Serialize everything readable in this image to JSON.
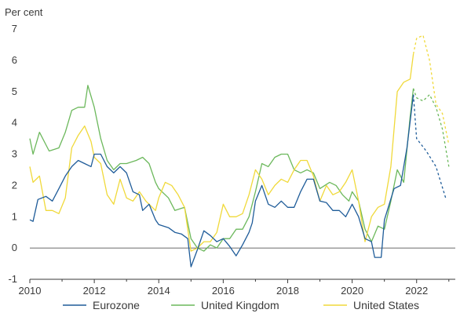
{
  "chart_data": {
    "type": "line",
    "title": "",
    "ylabel": "Per cent",
    "xlabel": "",
    "xlim": [
      2010,
      2023.2
    ],
    "ylim": [
      -1,
      7
    ],
    "x_ticks": [
      2010,
      2012,
      2014,
      2016,
      2018,
      2020,
      2022
    ],
    "y_ticks": [
      -1,
      0,
      1,
      2,
      3,
      4,
      5,
      6,
      7
    ],
    "grid": false,
    "legend_position": "bottom",
    "series": [
      {
        "name": "Eurozone",
        "color": "#1f5c99",
        "points": [
          [
            2010.0,
            0.9
          ],
          [
            2010.1,
            0.85
          ],
          [
            2010.25,
            1.55
          ],
          [
            2010.5,
            1.65
          ],
          [
            2010.7,
            1.5
          ],
          [
            2010.9,
            1.9
          ],
          [
            2011.1,
            2.3
          ],
          [
            2011.3,
            2.6
          ],
          [
            2011.5,
            2.8
          ],
          [
            2011.7,
            2.7
          ],
          [
            2011.9,
            2.6
          ],
          [
            2012.0,
            3.0
          ],
          [
            2012.2,
            3.0
          ],
          [
            2012.4,
            2.6
          ],
          [
            2012.6,
            2.4
          ],
          [
            2012.8,
            2.6
          ],
          [
            2013.0,
            2.4
          ],
          [
            2013.2,
            1.8
          ],
          [
            2013.4,
            1.7
          ],
          [
            2013.5,
            1.2
          ],
          [
            2013.7,
            1.4
          ],
          [
            2013.9,
            0.9
          ],
          [
            2014.0,
            0.75
          ],
          [
            2014.3,
            0.65
          ],
          [
            2014.5,
            0.5
          ],
          [
            2014.7,
            0.45
          ],
          [
            2014.9,
            0.3
          ],
          [
            2015.0,
            -0.6
          ],
          [
            2015.2,
            -0.05
          ],
          [
            2015.4,
            0.55
          ],
          [
            2015.6,
            0.4
          ],
          [
            2015.8,
            0.2
          ],
          [
            2016.0,
            0.3
          ],
          [
            2016.2,
            0.05
          ],
          [
            2016.4,
            -0.25
          ],
          [
            2016.6,
            0.1
          ],
          [
            2016.8,
            0.5
          ],
          [
            2016.9,
            0.8
          ],
          [
            2017.0,
            1.5
          ],
          [
            2017.2,
            2.0
          ],
          [
            2017.4,
            1.4
          ],
          [
            2017.6,
            1.3
          ],
          [
            2017.8,
            1.5
          ],
          [
            2018.0,
            1.3
          ],
          [
            2018.2,
            1.3
          ],
          [
            2018.4,
            1.8
          ],
          [
            2018.6,
            2.2
          ],
          [
            2018.8,
            2.2
          ],
          [
            2019.0,
            1.5
          ],
          [
            2019.2,
            1.45
          ],
          [
            2019.4,
            1.2
          ],
          [
            2019.6,
            1.2
          ],
          [
            2019.8,
            1.0
          ],
          [
            2020.0,
            1.4
          ],
          [
            2020.2,
            1.0
          ],
          [
            2020.4,
            0.3
          ],
          [
            2020.6,
            0.2
          ],
          [
            2020.7,
            -0.3
          ],
          [
            2020.9,
            -0.3
          ],
          [
            2021.0,
            0.9
          ],
          [
            2021.3,
            1.9
          ],
          [
            2021.5,
            2.0
          ],
          [
            2021.7,
            3.2
          ],
          [
            2021.9,
            4.9
          ]
        ],
        "forecast": [
          [
            2021.9,
            4.9
          ],
          [
            2022.0,
            3.5
          ],
          [
            2022.3,
            3.1
          ],
          [
            2022.6,
            2.6
          ],
          [
            2022.9,
            1.6
          ]
        ]
      },
      {
        "name": "United Kingdom",
        "color": "#6cb85c",
        "points": [
          [
            2010.0,
            3.5
          ],
          [
            2010.1,
            3.0
          ],
          [
            2010.3,
            3.7
          ],
          [
            2010.6,
            3.1
          ],
          [
            2010.9,
            3.2
          ],
          [
            2011.1,
            3.7
          ],
          [
            2011.3,
            4.4
          ],
          [
            2011.5,
            4.5
          ],
          [
            2011.7,
            4.5
          ],
          [
            2011.8,
            5.2
          ],
          [
            2012.0,
            4.5
          ],
          [
            2012.2,
            3.5
          ],
          [
            2012.4,
            2.8
          ],
          [
            2012.6,
            2.5
          ],
          [
            2012.8,
            2.7
          ],
          [
            2013.0,
            2.7
          ],
          [
            2013.3,
            2.8
          ],
          [
            2013.5,
            2.9
          ],
          [
            2013.7,
            2.7
          ],
          [
            2013.9,
            2.1
          ],
          [
            2014.0,
            1.9
          ],
          [
            2014.3,
            1.6
          ],
          [
            2014.5,
            1.2
          ],
          [
            2014.8,
            1.3
          ],
          [
            2015.0,
            0.3
          ],
          [
            2015.2,
            0.0
          ],
          [
            2015.4,
            -0.1
          ],
          [
            2015.6,
            0.1
          ],
          [
            2015.8,
            0.0
          ],
          [
            2016.0,
            0.3
          ],
          [
            2016.2,
            0.3
          ],
          [
            2016.4,
            0.6
          ],
          [
            2016.6,
            0.6
          ],
          [
            2016.8,
            1.0
          ],
          [
            2017.0,
            1.8
          ],
          [
            2017.2,
            2.7
          ],
          [
            2017.4,
            2.6
          ],
          [
            2017.6,
            2.9
          ],
          [
            2017.8,
            3.0
          ],
          [
            2018.0,
            3.0
          ],
          [
            2018.2,
            2.5
          ],
          [
            2018.4,
            2.4
          ],
          [
            2018.6,
            2.5
          ],
          [
            2018.8,
            2.4
          ],
          [
            2019.0,
            1.9
          ],
          [
            2019.3,
            2.1
          ],
          [
            2019.5,
            2.0
          ],
          [
            2019.7,
            1.7
          ],
          [
            2019.9,
            1.5
          ],
          [
            2020.0,
            1.8
          ],
          [
            2020.2,
            1.5
          ],
          [
            2020.4,
            0.6
          ],
          [
            2020.6,
            0.2
          ],
          [
            2020.8,
            0.7
          ],
          [
            2021.0,
            0.6
          ],
          [
            2021.2,
            1.5
          ],
          [
            2021.4,
            2.5
          ],
          [
            2021.6,
            2.1
          ],
          [
            2021.8,
            4.2
          ],
          [
            2021.9,
            5.1
          ]
        ],
        "forecast": [
          [
            2021.9,
            5.1
          ],
          [
            2022.0,
            4.8
          ],
          [
            2022.2,
            4.7
          ],
          [
            2022.4,
            4.9
          ],
          [
            2022.6,
            4.5
          ],
          [
            2022.8,
            3.8
          ],
          [
            2023.0,
            2.6
          ]
        ]
      },
      {
        "name": "United States",
        "color": "#f0d93a",
        "points": [
          [
            2010.0,
            2.6
          ],
          [
            2010.1,
            2.1
          ],
          [
            2010.3,
            2.3
          ],
          [
            2010.5,
            1.2
          ],
          [
            2010.7,
            1.2
          ],
          [
            2010.9,
            1.1
          ],
          [
            2011.1,
            1.6
          ],
          [
            2011.3,
            3.2
          ],
          [
            2011.5,
            3.6
          ],
          [
            2011.7,
            3.9
          ],
          [
            2011.9,
            3.4
          ],
          [
            2012.0,
            2.9
          ],
          [
            2012.2,
            2.7
          ],
          [
            2012.4,
            1.7
          ],
          [
            2012.6,
            1.4
          ],
          [
            2012.8,
            2.2
          ],
          [
            2013.0,
            1.6
          ],
          [
            2013.2,
            1.5
          ],
          [
            2013.4,
            1.8
          ],
          [
            2013.6,
            1.5
          ],
          [
            2013.9,
            1.2
          ],
          [
            2014.0,
            1.6
          ],
          [
            2014.2,
            2.1
          ],
          [
            2014.4,
            2.0
          ],
          [
            2014.6,
            1.7
          ],
          [
            2014.8,
            1.3
          ],
          [
            2015.0,
            -0.1
          ],
          [
            2015.2,
            0.0
          ],
          [
            2015.4,
            0.2
          ],
          [
            2015.6,
            0.2
          ],
          [
            2015.8,
            0.5
          ],
          [
            2016.0,
            1.4
          ],
          [
            2016.2,
            1.0
          ],
          [
            2016.4,
            1.0
          ],
          [
            2016.6,
            1.1
          ],
          [
            2016.8,
            1.7
          ],
          [
            2017.0,
            2.5
          ],
          [
            2017.2,
            2.2
          ],
          [
            2017.4,
            1.7
          ],
          [
            2017.6,
            2.0
          ],
          [
            2017.8,
            2.2
          ],
          [
            2018.0,
            2.1
          ],
          [
            2018.2,
            2.5
          ],
          [
            2018.4,
            2.8
          ],
          [
            2018.6,
            2.8
          ],
          [
            2018.8,
            2.3
          ],
          [
            2019.0,
            1.5
          ],
          [
            2019.2,
            2.0
          ],
          [
            2019.4,
            1.7
          ],
          [
            2019.6,
            1.8
          ],
          [
            2019.8,
            2.1
          ],
          [
            2020.0,
            2.5
          ],
          [
            2020.2,
            1.5
          ],
          [
            2020.4,
            0.2
          ],
          [
            2020.6,
            1.0
          ],
          [
            2020.8,
            1.3
          ],
          [
            2021.0,
            1.4
          ],
          [
            2021.2,
            2.6
          ],
          [
            2021.4,
            5.0
          ],
          [
            2021.6,
            5.3
          ],
          [
            2021.8,
            5.4
          ],
          [
            2021.9,
            6.2
          ]
        ],
        "forecast": [
          [
            2021.9,
            6.2
          ],
          [
            2022.0,
            6.7
          ],
          [
            2022.2,
            6.8
          ],
          [
            2022.4,
            6.0
          ],
          [
            2022.6,
            4.6
          ],
          [
            2022.8,
            4.3
          ],
          [
            2023.0,
            3.3
          ]
        ]
      }
    ]
  }
}
